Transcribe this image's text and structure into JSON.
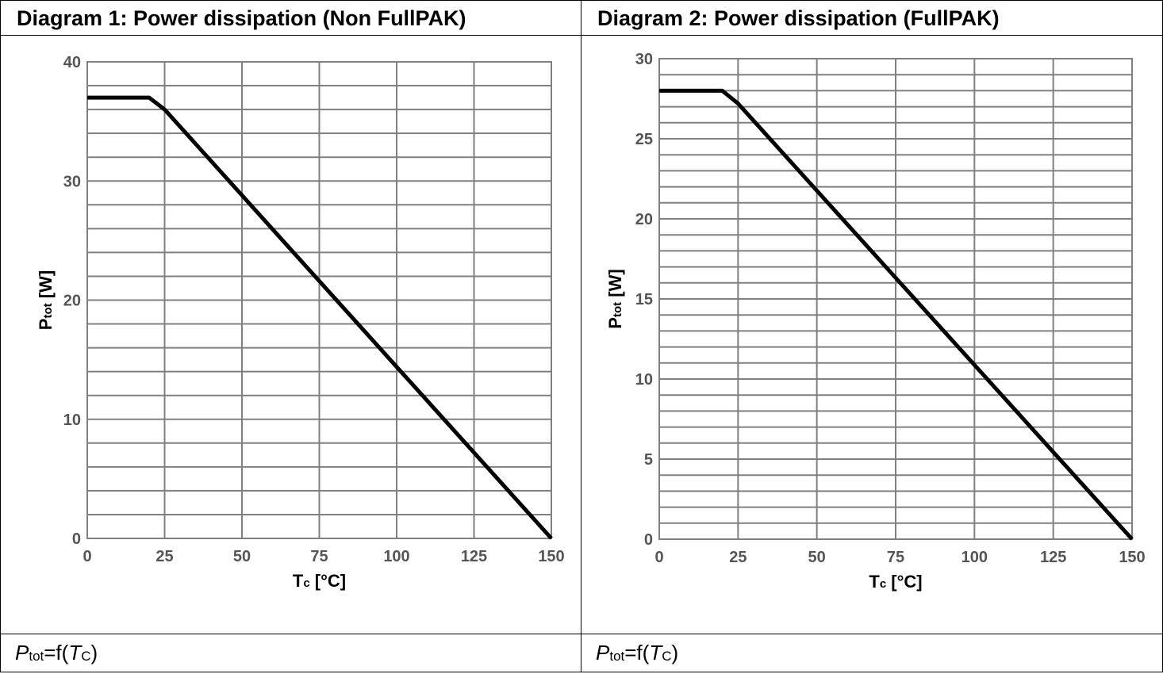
{
  "panels": [
    {
      "title": "Diagram 1: Power dissipation (Non FullPAK)",
      "caption": {
        "var": "P",
        "sub": "tot",
        "eq": "=f(",
        "arg": "T",
        "arg_sub": "C",
        "close": ")"
      }
    },
    {
      "title": "Diagram 2: Power dissipation (FullPAK)",
      "caption": {
        "var": "P",
        "sub": "tot",
        "eq": "=f(",
        "arg": "T",
        "arg_sub": "C",
        "close": ")"
      }
    }
  ],
  "chart_data": [
    {
      "type": "line",
      "title": "Diagram 1: Power dissipation (Non FullPAK)",
      "xlabel": "Tc [°C]",
      "ylabel": "Ptot [W]",
      "xlim": [
        0,
        150
      ],
      "ylim": [
        0,
        40
      ],
      "xticks": [
        0,
        25,
        50,
        75,
        100,
        125,
        150
      ],
      "yticks": [
        0,
        10,
        20,
        30,
        40
      ],
      "x_minor_step": 25,
      "y_minor_step": 2,
      "grid": true,
      "series": [
        {
          "x": [
            0,
            20,
            25,
            150
          ],
          "y": [
            37,
            37,
            36,
            0
          ]
        }
      ]
    },
    {
      "type": "line",
      "title": "Diagram 2: Power dissipation (FullPAK)",
      "xlabel": "Tc [°C]",
      "ylabel": "Ptot [W]",
      "xlim": [
        0,
        150
      ],
      "ylim": [
        0,
        30
      ],
      "xticks": [
        0,
        25,
        50,
        75,
        100,
        125,
        150
      ],
      "yticks": [
        0,
        5,
        10,
        15,
        20,
        25,
        30
      ],
      "x_minor_step": 25,
      "y_minor_step": 1,
      "grid": true,
      "series": [
        {
          "x": [
            0,
            20,
            25,
            150
          ],
          "y": [
            28,
            28,
            27.2,
            0
          ]
        }
      ]
    }
  ],
  "colors": {
    "grid": "#808080",
    "line": "#000000",
    "tick_label": "#555555"
  }
}
